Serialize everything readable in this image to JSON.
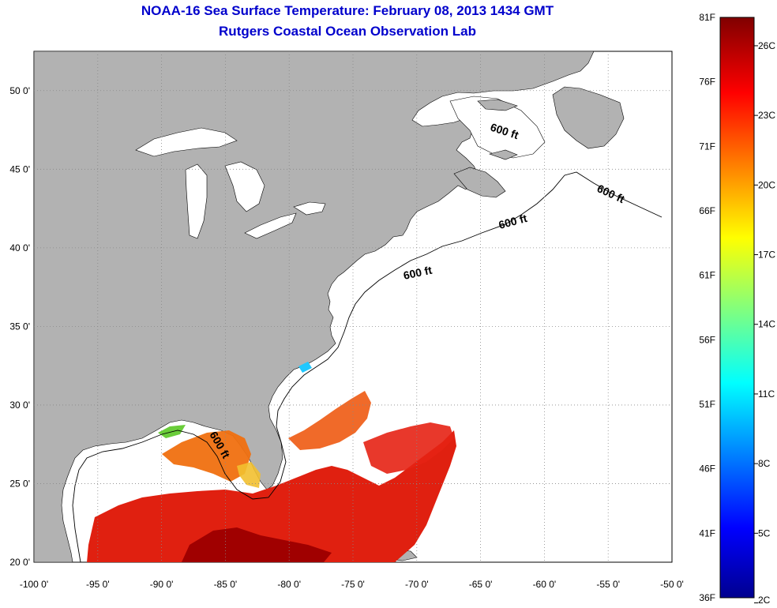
{
  "header": {
    "title": "NOAA-16 Sea Surface Temperature:  February 08, 2013 1434 GMT",
    "subtitle": "Rutgers Coastal Ocean Observation Lab"
  },
  "map": {
    "lon_ticks": [
      "-100 0'",
      "-95 0'",
      "-90 0'",
      "-85 0'",
      "-80 0'",
      "-75 0'",
      "-70 0'",
      "-65 0'",
      "-60 0'",
      "-55 0'",
      "-50 0'"
    ],
    "lat_ticks": [
      "20 0'",
      "25 0'",
      "30 0'",
      "35 0'",
      "40 0'",
      "45 0'",
      "50 0'"
    ],
    "lon_range": [
      -100,
      -50
    ],
    "lat_range": [
      20,
      52.5
    ],
    "grid": "dotted",
    "land_color": "#b2b2b2",
    "no_data_color": "#ffffff",
    "contour_label": "600 ft",
    "contour_labels": [
      "600 ft",
      "600 ft",
      "600 ft",
      "600 ft",
      "600 ft"
    ]
  },
  "colorbar": {
    "fahrenheit": [
      "81F",
      "76F",
      "71F",
      "66F",
      "61F",
      "56F",
      "51F",
      "46F",
      "41F",
      "36F"
    ],
    "celsius": [
      "26C",
      "23C",
      "20C",
      "17C",
      "14C",
      "11C",
      "8C",
      "5C",
      "2C"
    ],
    "colormap": "jet"
  }
}
